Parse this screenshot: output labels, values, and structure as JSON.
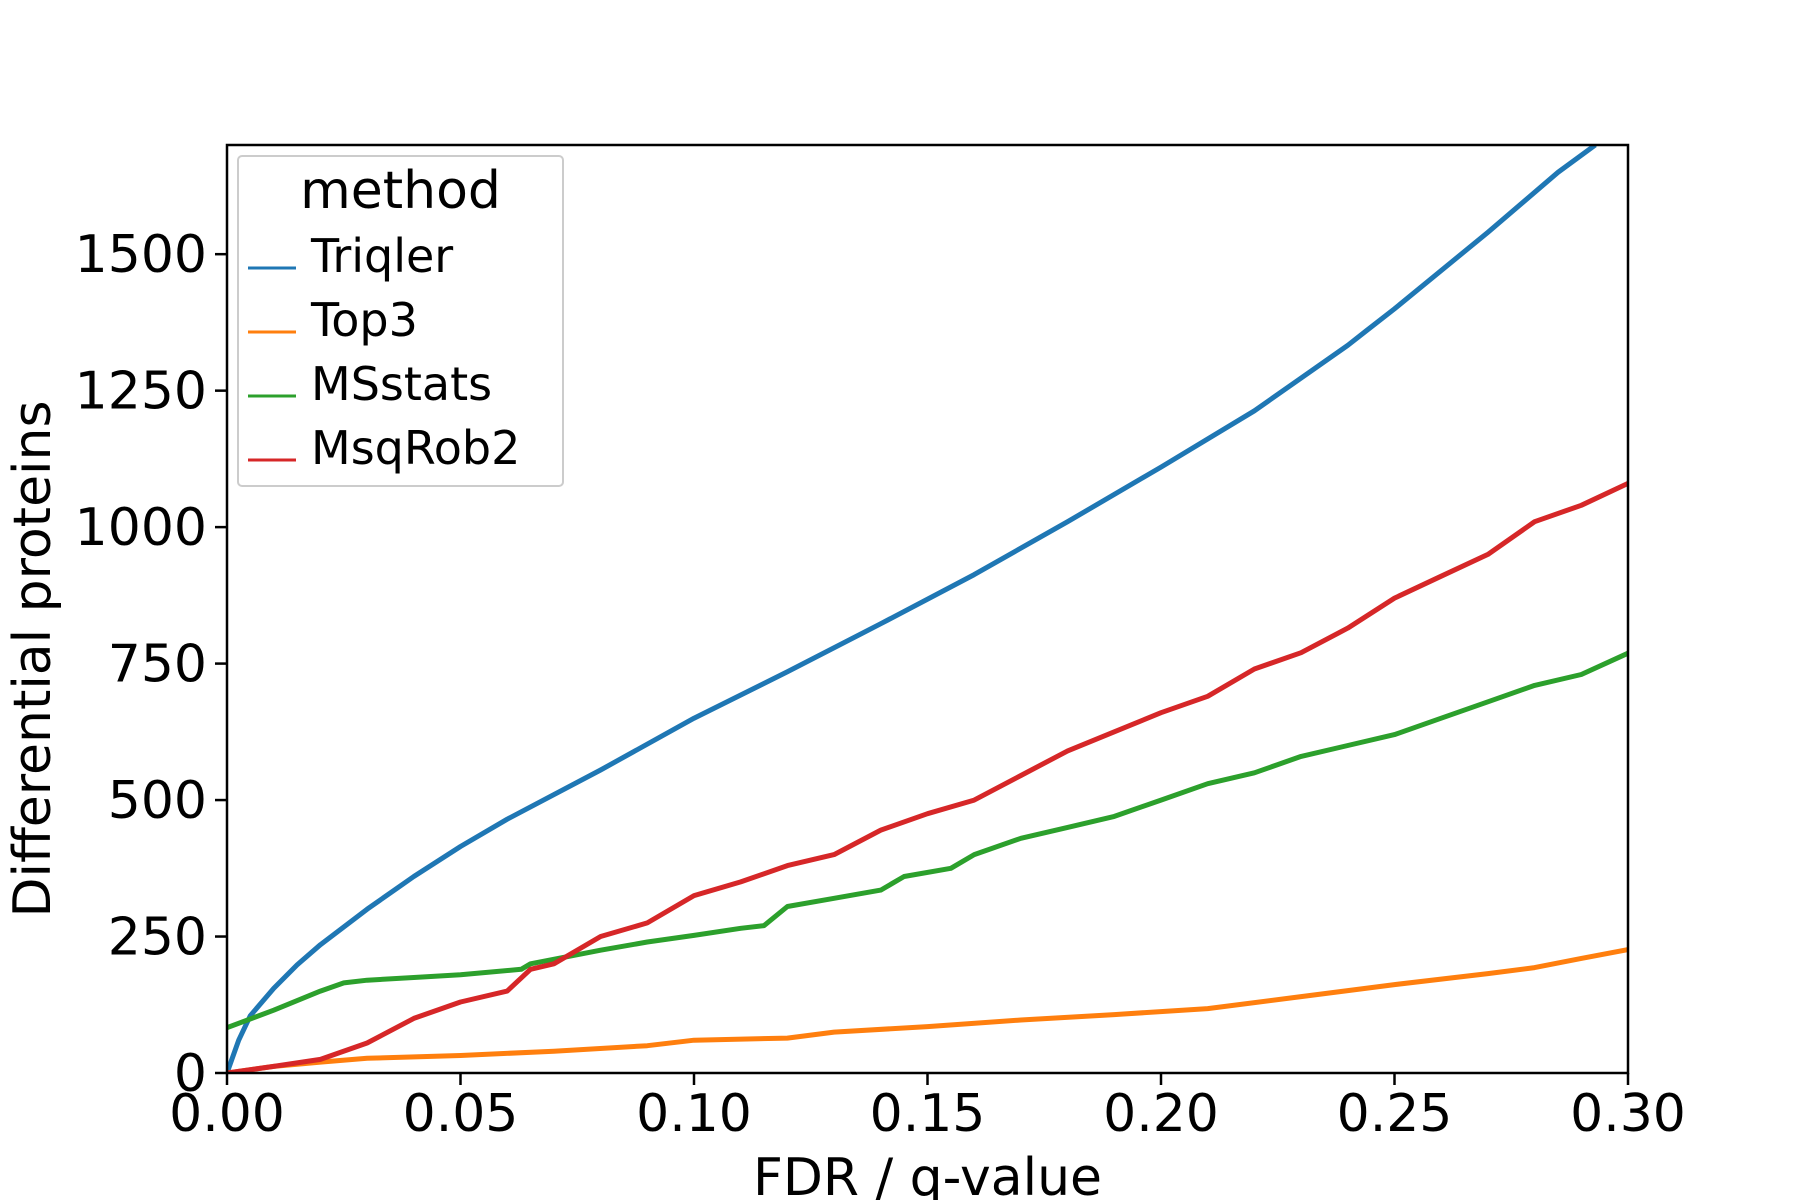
{
  "chart_data": {
    "type": "line",
    "xlabel": "FDR / q-value",
    "ylabel": "Differential proteins",
    "xlim": [
      0,
      0.3
    ],
    "ylim": [
      0,
      1700
    ],
    "xticks": [
      "0.00",
      "0.05",
      "0.10",
      "0.15",
      "0.20",
      "0.25",
      "0.30"
    ],
    "yticks": [
      "0",
      "250",
      "500",
      "750",
      "1000",
      "1250",
      "1500"
    ],
    "grid": false,
    "legend": {
      "title": "method",
      "placement": "top-left"
    },
    "series": [
      {
        "name": "Triqler",
        "color": "#1f77b4",
        "points": [
          [
            0,
            0
          ],
          [
            0.0025,
            60
          ],
          [
            0.005,
            105
          ],
          [
            0.01,
            155
          ],
          [
            0.015,
            198
          ],
          [
            0.02,
            235
          ],
          [
            0.03,
            300
          ],
          [
            0.04,
            360
          ],
          [
            0.05,
            415
          ],
          [
            0.06,
            465
          ],
          [
            0.08,
            555
          ],
          [
            0.1,
            650
          ],
          [
            0.12,
            735
          ],
          [
            0.14,
            823
          ],
          [
            0.16,
            913
          ],
          [
            0.18,
            1010
          ],
          [
            0.2,
            1110
          ],
          [
            0.22,
            1213
          ],
          [
            0.24,
            1333
          ],
          [
            0.244,
            1360
          ],
          [
            0.25,
            1400
          ],
          [
            0.27,
            1540
          ],
          [
            0.285,
            1650
          ],
          [
            0.293,
            1700
          ]
        ]
      },
      {
        "name": "Top3",
        "color": "#ff7f0e",
        "points": [
          [
            0,
            0
          ],
          [
            0.01,
            12
          ],
          [
            0.02,
            20
          ],
          [
            0.03,
            27
          ],
          [
            0.05,
            32
          ],
          [
            0.07,
            40
          ],
          [
            0.09,
            50
          ],
          [
            0.1,
            60
          ],
          [
            0.12,
            64
          ],
          [
            0.13,
            75
          ],
          [
            0.15,
            85
          ],
          [
            0.17,
            97
          ],
          [
            0.19,
            107
          ],
          [
            0.21,
            118
          ],
          [
            0.23,
            140
          ],
          [
            0.25,
            162
          ],
          [
            0.27,
            182
          ],
          [
            0.28,
            193
          ],
          [
            0.29,
            210
          ],
          [
            0.3,
            226
          ]
        ]
      },
      {
        "name": "MSstats",
        "color": "#2ca02c",
        "points": [
          [
            0,
            83
          ],
          [
            0.01,
            115
          ],
          [
            0.02,
            150
          ],
          [
            0.025,
            165
          ],
          [
            0.03,
            170
          ],
          [
            0.04,
            175
          ],
          [
            0.05,
            180
          ],
          [
            0.063,
            190
          ],
          [
            0.065,
            200
          ],
          [
            0.08,
            225
          ],
          [
            0.09,
            240
          ],
          [
            0.1,
            252
          ],
          [
            0.11,
            265
          ],
          [
            0.115,
            270
          ],
          [
            0.12,
            305
          ],
          [
            0.13,
            320
          ],
          [
            0.14,
            335
          ],
          [
            0.145,
            360
          ],
          [
            0.155,
            375
          ],
          [
            0.16,
            400
          ],
          [
            0.17,
            430
          ],
          [
            0.18,
            450
          ],
          [
            0.19,
            470
          ],
          [
            0.2,
            500
          ],
          [
            0.21,
            530
          ],
          [
            0.22,
            550
          ],
          [
            0.23,
            580
          ],
          [
            0.24,
            600
          ],
          [
            0.25,
            620
          ],
          [
            0.26,
            650
          ],
          [
            0.27,
            680
          ],
          [
            0.28,
            710
          ],
          [
            0.29,
            730
          ],
          [
            0.3,
            769
          ]
        ]
      },
      {
        "name": "MsqRob2",
        "color": "#d62728",
        "points": [
          [
            0,
            0
          ],
          [
            0.01,
            12
          ],
          [
            0.02,
            25
          ],
          [
            0.03,
            55
          ],
          [
            0.04,
            100
          ],
          [
            0.05,
            130
          ],
          [
            0.06,
            150
          ],
          [
            0.065,
            190
          ],
          [
            0.07,
            200
          ],
          [
            0.08,
            250
          ],
          [
            0.09,
            275
          ],
          [
            0.1,
            325
          ],
          [
            0.11,
            350
          ],
          [
            0.12,
            380
          ],
          [
            0.13,
            400
          ],
          [
            0.14,
            445
          ],
          [
            0.15,
            475
          ],
          [
            0.16,
            500
          ],
          [
            0.17,
            545
          ],
          [
            0.18,
            590
          ],
          [
            0.19,
            625
          ],
          [
            0.2,
            660
          ],
          [
            0.21,
            690
          ],
          [
            0.22,
            740
          ],
          [
            0.23,
            770
          ],
          [
            0.24,
            815
          ],
          [
            0.25,
            870
          ],
          [
            0.26,
            910
          ],
          [
            0.27,
            950
          ],
          [
            0.28,
            1010
          ],
          [
            0.29,
            1040
          ],
          [
            0.3,
            1080
          ]
        ]
      }
    ]
  }
}
